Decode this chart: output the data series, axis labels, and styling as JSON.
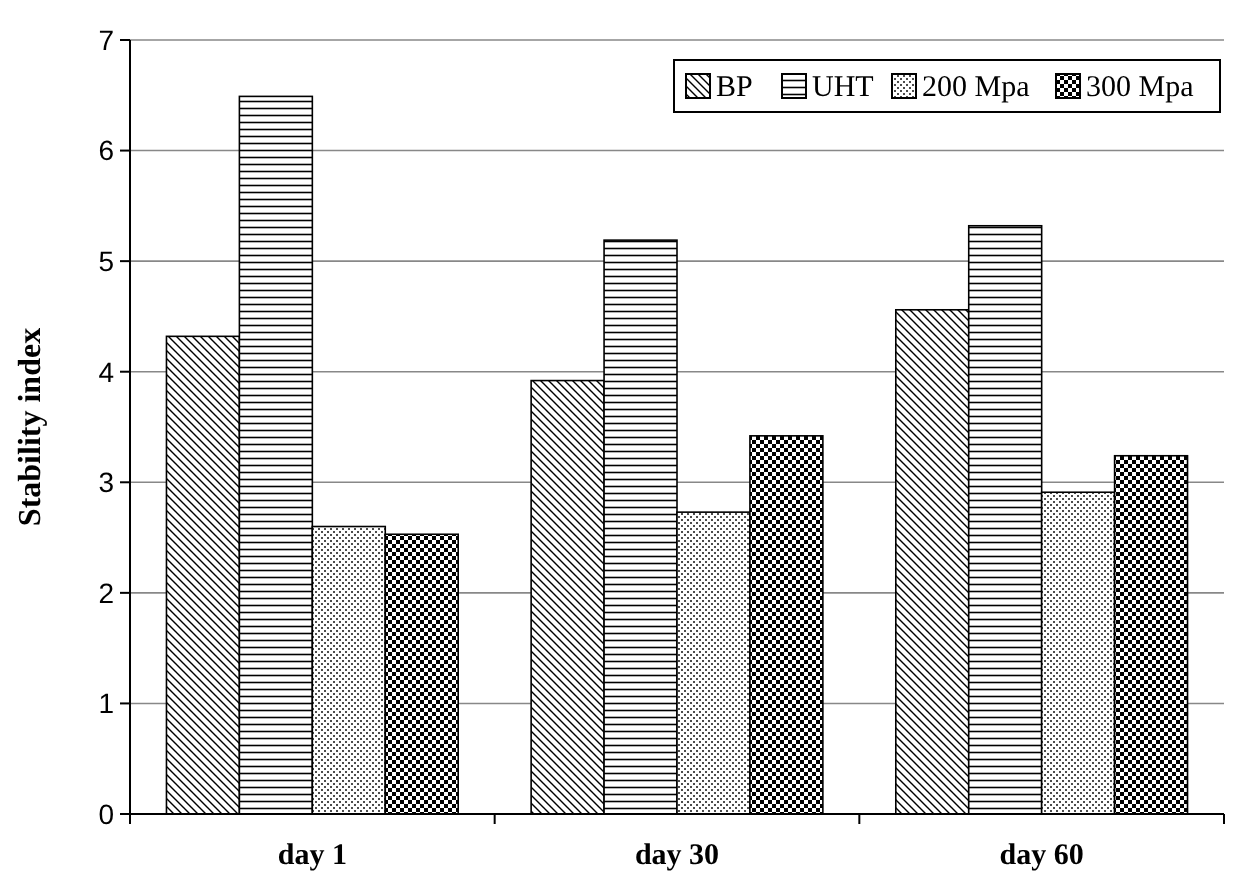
{
  "chart_data": {
    "type": "bar",
    "ylabel": "Stability index",
    "categories": [
      "day 1",
      "day 30",
      "day 60"
    ],
    "series": [
      {
        "name": "BP",
        "color": "#000000",
        "values": [
          4.32,
          3.92,
          4.56
        ]
      },
      {
        "name": "UHT",
        "color": "#000000",
        "values": [
          6.49,
          5.19,
          5.32
        ]
      },
      {
        "name": "200 Mpa",
        "color": "#000000",
        "values": [
          2.6,
          2.73,
          2.91
        ]
      },
      {
        "name": "300 Mpa",
        "color": "#000000",
        "values": [
          2.53,
          3.42,
          3.24
        ]
      }
    ],
    "ylim": [
      0,
      7
    ],
    "yticks": [
      0,
      1,
      2,
      3,
      4,
      5,
      6,
      7
    ],
    "grid": "y",
    "legend": "top right"
  }
}
